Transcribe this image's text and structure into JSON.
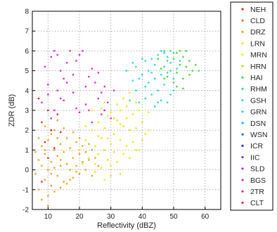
{
  "chart_data": {
    "type": "scatter",
    "xlabel": "Reflectivity (dBZ)",
    "ylabel": "ZDR (dB)",
    "xlim": [
      5,
      65
    ],
    "ylim": [
      -2,
      8
    ],
    "xticks": [
      10,
      20,
      30,
      40,
      50,
      60
    ],
    "yticks": [
      -2,
      -1,
      0,
      1,
      2,
      3,
      4,
      5,
      6,
      7,
      8
    ],
    "grid": "dotted",
    "legend_position": "right",
    "legend": [
      {
        "name": "NEH",
        "color": "#e8202a"
      },
      {
        "name": "CLD",
        "color": "#e8762c"
      },
      {
        "name": "DRZ",
        "color": "#f2a21e"
      },
      {
        "name": "LRN",
        "color": "#f0e614"
      },
      {
        "name": "MRN",
        "color": "#e2ec1a"
      },
      {
        "name": "HRN",
        "color": "#b4de22"
      },
      {
        "name": "HAI",
        "color": "#4ad83c"
      },
      {
        "name": "RHM",
        "color": "#3cd882"
      },
      {
        "name": "GSH",
        "color": "#30e0c6"
      },
      {
        "name": "GRN",
        "color": "#2ad6ea"
      },
      {
        "name": "DSN",
        "color": "#22aaf0"
      },
      {
        "name": "WSN",
        "color": "#2a66e6"
      },
      {
        "name": "ICR",
        "color": "#2a30d8"
      },
      {
        "name": "IIC",
        "color": "#7a34d8"
      },
      {
        "name": "SLD",
        "color": "#b030d8"
      },
      {
        "name": "BGS",
        "color": "#e02cd6"
      },
      {
        "name": "2TR",
        "color": "#e82890"
      },
      {
        "name": "CLT",
        "color": "#e82648"
      }
    ],
    "series": [
      {
        "name": "DRZ",
        "color": "#f2a21e",
        "points": [
          [
            6,
            -0.2
          ],
          [
            7,
            0.5
          ],
          [
            7,
            -1.0
          ],
          [
            8,
            0.2
          ],
          [
            8,
            1.2
          ],
          [
            9,
            -0.5
          ],
          [
            9,
            0.8
          ],
          [
            10,
            0.0
          ],
          [
            10,
            1.5
          ],
          [
            10,
            -1.3
          ],
          [
            11,
            0.4
          ],
          [
            11,
            -0.8
          ],
          [
            12,
            1.0
          ],
          [
            12,
            0.1
          ],
          [
            12,
            2.0
          ],
          [
            13,
            -0.3
          ],
          [
            13,
            0.7
          ],
          [
            14,
            1.3
          ],
          [
            14,
            0.2
          ],
          [
            15,
            -0.6
          ],
          [
            15,
            0.9
          ],
          [
            16,
            1.6
          ],
          [
            16,
            0.3
          ],
          [
            17,
            0.0
          ],
          [
            17,
            1.1
          ],
          [
            18,
            0.6
          ],
          [
            18,
            -0.4
          ],
          [
            19,
            1.4
          ],
          [
            19,
            0.2
          ],
          [
            20,
            0.8
          ],
          [
            20,
            -0.2
          ],
          [
            21,
            1.2
          ],
          [
            21,
            0.4
          ],
          [
            22,
            0.0
          ],
          [
            22,
            0.9
          ],
          [
            23,
            0.5
          ],
          [
            24,
            1.0
          ],
          [
            24,
            -0.3
          ],
          [
            25,
            0.6
          ],
          [
            26,
            0.2
          ],
          [
            9,
            2.2
          ],
          [
            11,
            1.8
          ],
          [
            13,
            2.5
          ],
          [
            8,
            -1.5
          ],
          [
            10,
            -1.8
          ],
          [
            14,
            -0.9
          ],
          [
            16,
            -0.7
          ],
          [
            18,
            1.9
          ],
          [
            6,
            0.9
          ],
          [
            7,
            1.6
          ],
          [
            12,
            -1.1
          ],
          [
            15,
            2.1
          ],
          [
            17,
            -0.5
          ],
          [
            19,
            -0.1
          ],
          [
            20,
            1.6
          ],
          [
            23,
            1.3
          ],
          [
            13,
            1.6
          ],
          [
            9,
            1.0
          ],
          [
            11,
            -0.2
          ],
          [
            14,
            0.5
          ]
        ]
      },
      {
        "name": "LRN",
        "color": "#f0e614",
        "points": [
          [
            20,
            1.0
          ],
          [
            21,
            0.3
          ],
          [
            22,
            1.5
          ],
          [
            23,
            0.6
          ],
          [
            24,
            2.0
          ],
          [
            25,
            1.2
          ],
          [
            25,
            0.3
          ],
          [
            26,
            2.4
          ],
          [
            26,
            0.8
          ],
          [
            27,
            1.6
          ],
          [
            27,
            0.1
          ],
          [
            28,
            2.1
          ],
          [
            28,
            1.0
          ],
          [
            29,
            0.5
          ],
          [
            29,
            2.7
          ],
          [
            30,
            1.3
          ],
          [
            30,
            0.2
          ],
          [
            31,
            1.8
          ],
          [
            31,
            0.9
          ],
          [
            32,
            2.5
          ],
          [
            32,
            0.4
          ],
          [
            33,
            1.5
          ],
          [
            33,
            3.0
          ],
          [
            34,
            0.8
          ],
          [
            34,
            2.2
          ],
          [
            35,
            1.2
          ],
          [
            35,
            3.2
          ],
          [
            36,
            2.0
          ],
          [
            36,
            0.6
          ],
          [
            37,
            2.8
          ],
          [
            37,
            1.4
          ],
          [
            38,
            3.4
          ],
          [
            38,
            2.1
          ],
          [
            39,
            1.0
          ],
          [
            39,
            3.0
          ],
          [
            40,
            2.4
          ],
          [
            41,
            3.6
          ],
          [
            41,
            1.8
          ],
          [
            42,
            2.9
          ],
          [
            43,
            3.8
          ],
          [
            24,
            3.0
          ],
          [
            28,
            3.4
          ],
          [
            30,
            2.9
          ],
          [
            26,
            1.7
          ],
          [
            29,
            1.6
          ],
          [
            31,
            2.6
          ],
          [
            33,
            2.3
          ],
          [
            35,
            2.6
          ],
          [
            22,
            2.2
          ],
          [
            27,
            3.1
          ],
          [
            32,
            3.3
          ],
          [
            34,
            3.6
          ],
          [
            36,
            3.9
          ],
          [
            30,
            -0.3
          ],
          [
            28,
            -0.5
          ],
          [
            25,
            -0.1
          ],
          [
            33,
            -0.2
          ],
          [
            38,
            1.0
          ],
          [
            40,
            1.5
          ],
          [
            42,
            2.0
          ]
        ]
      },
      {
        "name": "GRN",
        "color": "#2ad6ea",
        "points": [
          [
            36,
            3.5
          ],
          [
            37,
            4.5
          ],
          [
            38,
            4.0
          ],
          [
            38,
            5.2
          ],
          [
            39,
            3.4
          ],
          [
            40,
            4.8
          ],
          [
            40,
            5.6
          ],
          [
            41,
            4.2
          ],
          [
            41,
            3.6
          ],
          [
            42,
            5.0
          ],
          [
            42,
            4.4
          ],
          [
            43,
            5.6
          ],
          [
            43,
            3.8
          ],
          [
            44,
            4.6
          ],
          [
            44,
            5.3
          ],
          [
            45,
            4.0
          ],
          [
            45,
            5.8
          ],
          [
            46,
            4.8
          ],
          [
            46,
            3.5
          ],
          [
            47,
            5.2
          ],
          [
            47,
            4.3
          ],
          [
            48,
            5.7
          ],
          [
            48,
            4.9
          ],
          [
            49,
            3.8
          ],
          [
            49,
            5.4
          ],
          [
            50,
            4.6
          ],
          [
            50,
            5.9
          ],
          [
            51,
            5.1
          ],
          [
            44,
            3.2
          ],
          [
            46,
            6.0
          ],
          [
            39,
            4.6
          ],
          [
            41,
            5.5
          ],
          [
            43,
            4.9
          ],
          [
            45,
            3.4
          ],
          [
            47,
            5.9
          ],
          [
            37,
            5.4
          ],
          [
            35,
            5.0
          ],
          [
            50,
            4.0
          ],
          [
            52,
            5.5
          ],
          [
            48,
            3.4
          ]
        ]
      },
      {
        "name": "HAI",
        "color": "#4ad83c",
        "points": [
          [
            45,
            5.6
          ],
          [
            46,
            5.1
          ],
          [
            47,
            6.0
          ],
          [
            48,
            5.5
          ],
          [
            48,
            4.7
          ],
          [
            49,
            6.0
          ],
          [
            49,
            5.0
          ],
          [
            50,
            5.6
          ],
          [
            50,
            4.4
          ],
          [
            51,
            5.9
          ],
          [
            51,
            4.9
          ],
          [
            52,
            5.3
          ],
          [
            52,
            6.0
          ],
          [
            53,
            5.7
          ],
          [
            53,
            4.6
          ],
          [
            54,
            5.2
          ],
          [
            55,
            5.5
          ],
          [
            55,
            4.8
          ],
          [
            56,
            5.0
          ],
          [
            57,
            5.3
          ],
          [
            58,
            5.0
          ],
          [
            51,
            4.2
          ],
          [
            53,
            4.1
          ],
          [
            54,
            6.0
          ],
          [
            47,
            4.6
          ]
        ]
      },
      {
        "name": "BGS",
        "color": "#e02cd6",
        "points": [
          [
            10,
            4.3
          ],
          [
            11,
            5.7
          ],
          [
            12,
            6.0
          ],
          [
            13,
            4.0
          ],
          [
            14,
            5.0
          ],
          [
            15,
            3.5
          ],
          [
            16,
            5.4
          ],
          [
            17,
            6.0
          ],
          [
            18,
            4.8
          ],
          [
            19,
            3.1
          ],
          [
            20,
            5.8
          ],
          [
            21,
            6.0
          ],
          [
            22,
            4.2
          ],
          [
            23,
            3.0
          ],
          [
            24,
            5.1
          ],
          [
            25,
            4.4
          ],
          [
            26,
            3.6
          ],
          [
            27,
            2.8
          ],
          [
            28,
            4.2
          ],
          [
            29,
            3.4
          ],
          [
            30,
            2.6
          ],
          [
            31,
            4.0
          ],
          [
            8,
            3.4
          ],
          [
            9,
            5.2
          ],
          [
            12,
            3.0
          ],
          [
            14,
            3.6
          ],
          [
            16,
            4.4
          ],
          [
            18,
            3.9
          ],
          [
            20,
            2.9
          ],
          [
            22,
            3.3
          ],
          [
            24,
            2.4
          ],
          [
            11,
            2.6
          ],
          [
            13,
            5.8
          ],
          [
            26,
            4.9
          ],
          [
            28,
            3.0
          ],
          [
            10,
            3.8
          ],
          [
            15,
            4.6
          ],
          [
            19,
            5.5
          ],
          [
            23,
            4.7
          ],
          [
            27,
            3.9
          ]
        ]
      },
      {
        "name": "NEH",
        "color": "#e8202a",
        "points": [
          [
            7,
            3.6
          ],
          [
            8,
            2.4
          ],
          [
            9,
            1.4
          ],
          [
            10,
            3.0
          ],
          [
            11,
            2.0
          ],
          [
            12,
            1.1
          ],
          [
            13,
            2.8
          ],
          [
            8,
            -0.6
          ],
          [
            10,
            0.6
          ],
          [
            14,
            1.9
          ]
        ]
      }
    ]
  }
}
